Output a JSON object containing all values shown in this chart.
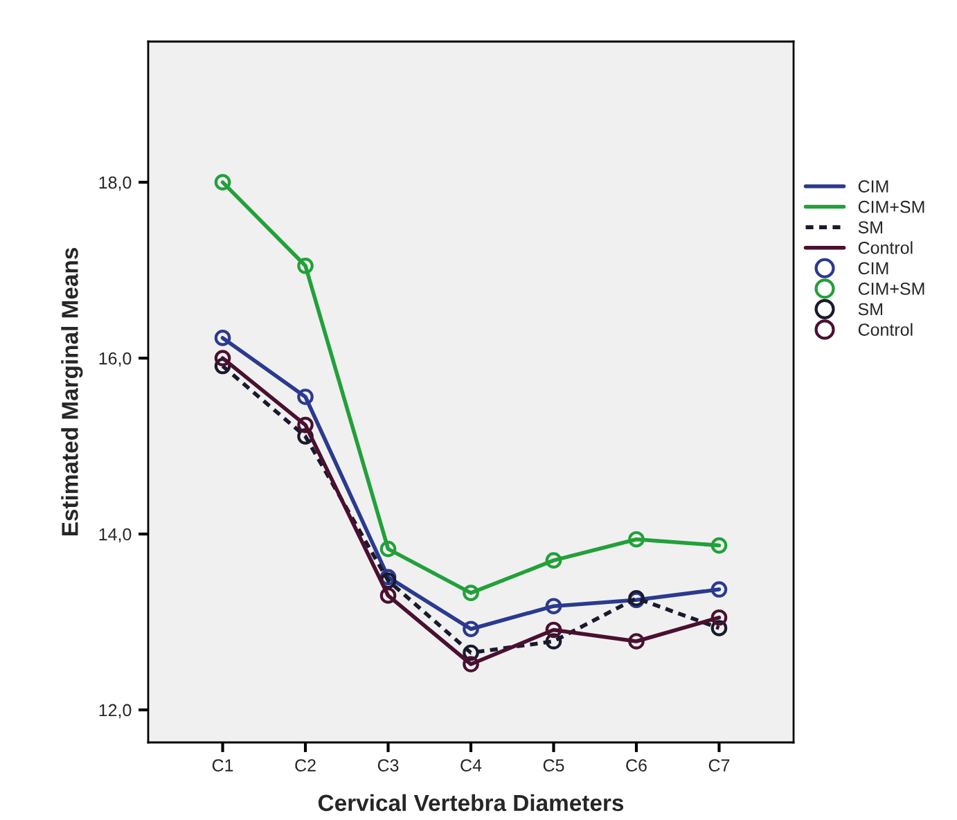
{
  "chart_data": {
    "type": "line",
    "xlabel": "Cervical Vertebra Diameters",
    "ylabel": "Estimated Marginal Means",
    "categories": [
      "C1",
      "C2",
      "C3",
      "C4",
      "C5",
      "C6",
      "C7"
    ],
    "series": [
      {
        "name": "CIM",
        "color": "#2b3a8f",
        "values": [
          16.23,
          15.56,
          13.51,
          12.92,
          13.18,
          13.25,
          13.37
        ]
      },
      {
        "name": "CIM+SM",
        "color": "#22a03a",
        "values": [
          18.0,
          17.05,
          13.83,
          13.33,
          13.7,
          13.94,
          13.87
        ]
      },
      {
        "name": "SM",
        "color": "#1a1a2e",
        "line_style": "dashed",
        "values": [
          15.91,
          15.11,
          13.47,
          12.65,
          12.78,
          13.27,
          12.93
        ]
      },
      {
        "name": "Control",
        "color": "#4a1030",
        "values": [
          16.0,
          15.24,
          13.3,
          12.52,
          12.91,
          12.78,
          13.05
        ]
      }
    ],
    "ylim": [
      11.63,
      19.6
    ],
    "yticks": [
      {
        "value": 12,
        "label": "12,0"
      },
      {
        "value": 14,
        "label": "14,0"
      },
      {
        "value": 16,
        "label": "16,0"
      },
      {
        "value": 18,
        "label": "18,0"
      }
    ],
    "marker": "circle",
    "line_style": "solid",
    "grid": false,
    "legend": "right"
  }
}
